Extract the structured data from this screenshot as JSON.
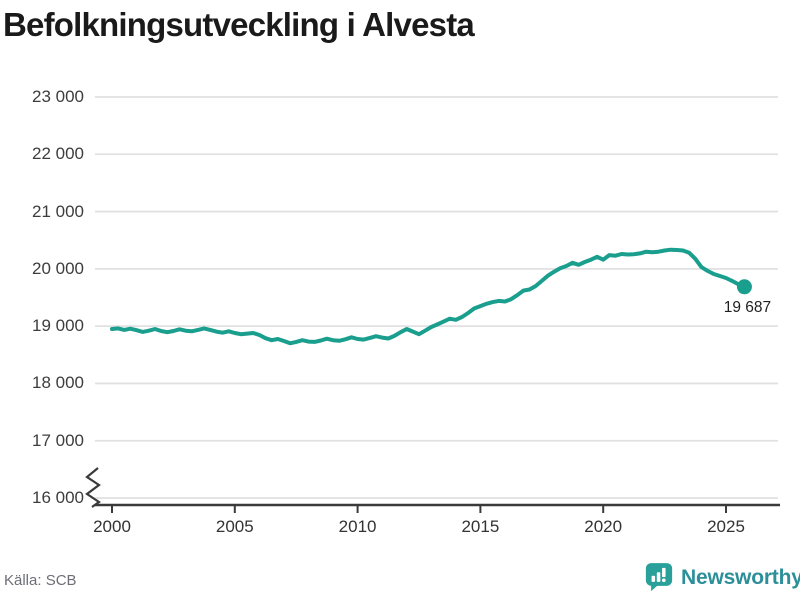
{
  "title": "Befolkningsutveckling i Alvesta",
  "source": "Källa: SCB",
  "brand": {
    "name": "Newsworthy",
    "icon": "bar-chart-speech-bubble-icon"
  },
  "colors": {
    "line": "#1a9e8d",
    "grid": "#e1e1e1",
    "axis": "#3a3a3a",
    "title_text": "#1a1a1a",
    "tick_text": "#3d3d3d",
    "source_text": "#6e6e78",
    "brand_icon": "#2aa09a",
    "brand_text": "#2c8f99"
  },
  "chart_data": {
    "type": "line",
    "title": "Befolkningsutveckling i Alvesta",
    "xlabel": "",
    "ylabel": "",
    "legend": "none",
    "grid": "horizontal",
    "ylim_displayed": [
      16000,
      23000
    ],
    "axis_break_at_bottom": true,
    "x_ticks": [
      2000,
      2005,
      2010,
      2015,
      2020,
      2025
    ],
    "x_tick_labels": [
      "2000",
      "2005",
      "2010",
      "2015",
      "2020",
      "2025"
    ],
    "y_ticks": [
      23000,
      22000,
      21000,
      20000,
      19000,
      18000,
      17000,
      16000
    ],
    "y_tick_labels": [
      "23 000",
      "22 000",
      "21 000",
      "20 000",
      "19 000",
      "18 000",
      "17 000",
      "16 000"
    ],
    "x_start": 2000.0,
    "x_step": 0.25,
    "x_unit": "year (quarterly series)",
    "last_value": 19687,
    "last_value_label": "19 687",
    "values": [
      18950,
      18960,
      18935,
      18955,
      18930,
      18900,
      18920,
      18950,
      18915,
      18895,
      18915,
      18945,
      18920,
      18910,
      18935,
      18960,
      18935,
      18905,
      18885,
      18910,
      18880,
      18860,
      18870,
      18880,
      18845,
      18790,
      18755,
      18775,
      18740,
      18700,
      18725,
      18755,
      18730,
      18725,
      18750,
      18780,
      18755,
      18745,
      18770,
      18805,
      18775,
      18765,
      18795,
      18825,
      18800,
      18785,
      18830,
      18895,
      18950,
      18905,
      18860,
      18920,
      18985,
      19030,
      19080,
      19130,
      19110,
      19160,
      19230,
      19310,
      19350,
      19390,
      19420,
      19440,
      19430,
      19470,
      19540,
      19620,
      19640,
      19700,
      19790,
      19880,
      19950,
      20010,
      20050,
      20105,
      20070,
      20120,
      20160,
      20210,
      20160,
      20240,
      20230,
      20260,
      20250,
      20255,
      20270,
      20300,
      20290,
      20300,
      20320,
      20335,
      20330,
      20320,
      20280,
      20175,
      20030,
      19965,
      19910,
      19875,
      19840,
      19790,
      19730,
      19687
    ]
  }
}
